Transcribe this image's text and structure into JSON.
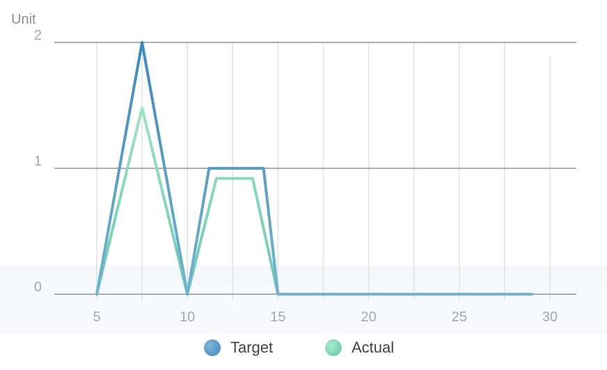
{
  "chart_data": {
    "type": "line",
    "ylabel": "Unit",
    "xlim": [
      2.5,
      31.5
    ],
    "ylim": [
      0,
      2
    ],
    "x_ticks": [
      "5",
      "10",
      "15",
      "20",
      "25",
      "30"
    ],
    "y_ticks": [
      "0",
      "1",
      "2"
    ],
    "series": [
      {
        "name": "Target",
        "color": "#4f94be",
        "points": [
          [
            5,
            0
          ],
          [
            7.5,
            2
          ],
          [
            10,
            0
          ],
          [
            11.2,
            1
          ],
          [
            14.2,
            1
          ],
          [
            15,
            0
          ],
          [
            29,
            0
          ]
        ]
      },
      {
        "name": "Actual",
        "color": "#7fd7b4",
        "points": [
          [
            5,
            0
          ],
          [
            7.5,
            1.48
          ],
          [
            10,
            0
          ],
          [
            11.6,
            0.92
          ],
          [
            13.6,
            0.92
          ],
          [
            15,
            0
          ],
          [
            29,
            0
          ]
        ]
      }
    ],
    "legend_position": "bottom"
  }
}
